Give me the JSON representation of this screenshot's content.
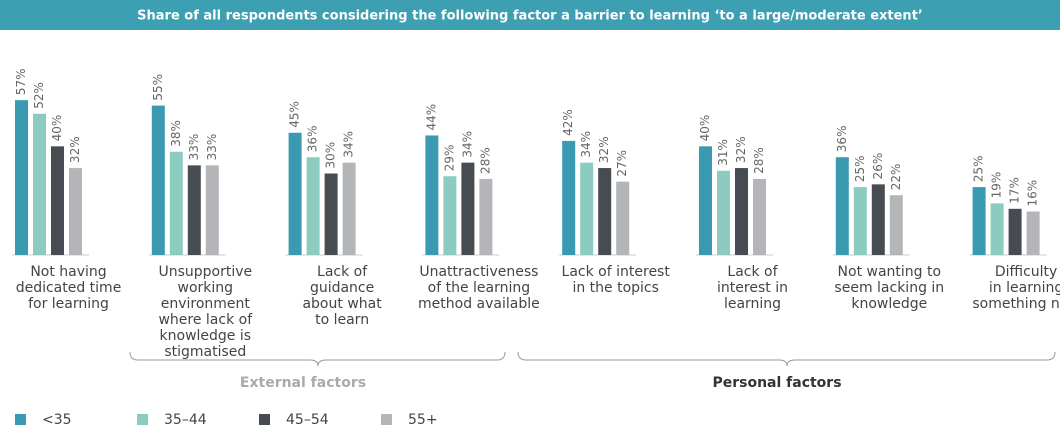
{
  "chart_data": {
    "type": "bar",
    "title": "Share of all respondents considering the following factor a barrier to learning ‘to a large/moderate extent’",
    "categories": [
      [
        "Not having",
        "dedicated time",
        "for learning"
      ],
      [
        "Unsupportive",
        "working",
        "environment",
        "where lack of",
        "knowledge is",
        "stigmatised"
      ],
      [
        "Lack of",
        "guidance",
        "about what",
        "to learn"
      ],
      [
        "Unattractiveness",
        "of the learning",
        "method available"
      ],
      [
        "Lack of interest",
        "in the topics"
      ],
      [
        "Lack of",
        "interest in",
        "learning"
      ],
      [
        "Not wanting to",
        "seem lacking in",
        "knowledge"
      ],
      [
        "Difficulty",
        "in learning",
        "something new"
      ]
    ],
    "series": [
      {
        "name": "<35",
        "color": "#3a9ab2",
        "values": [
          57,
          55,
          45,
          44,
          42,
          40,
          36,
          25
        ],
        "value_labels": [
          "57%",
          "55%",
          "45%",
          "44%",
          "42%",
          "40%",
          "36%",
          "25%"
        ]
      },
      {
        "name": "35–44",
        "color": "#8ccbbf",
        "values": [
          52,
          38,
          36,
          29,
          34,
          31,
          25,
          19
        ],
        "value_labels": [
          "52%",
          "38%",
          "36%",
          "29%",
          "34%",
          "31%",
          "25%",
          "19%"
        ]
      },
      {
        "name": "45–54",
        "color": "#474b52",
        "values": [
          40,
          33,
          30,
          34,
          32,
          32,
          26,
          17
        ],
        "value_labels": [
          "40%",
          "33%",
          "30%",
          "34%",
          "32%",
          "32%",
          "26%",
          "17%"
        ]
      },
      {
        "name": "55+",
        "color": "#b4b5b8",
        "values": [
          32,
          33,
          34,
          28,
          27,
          28,
          22,
          16
        ],
        "value_labels": [
          "32%",
          "33%",
          "34%",
          "28%",
          "27%",
          "28%",
          "22%",
          "16%"
        ]
      }
    ],
    "groups": [
      "External factors",
      "Personal factors"
    ],
    "ylim": [
      0,
      60
    ]
  }
}
